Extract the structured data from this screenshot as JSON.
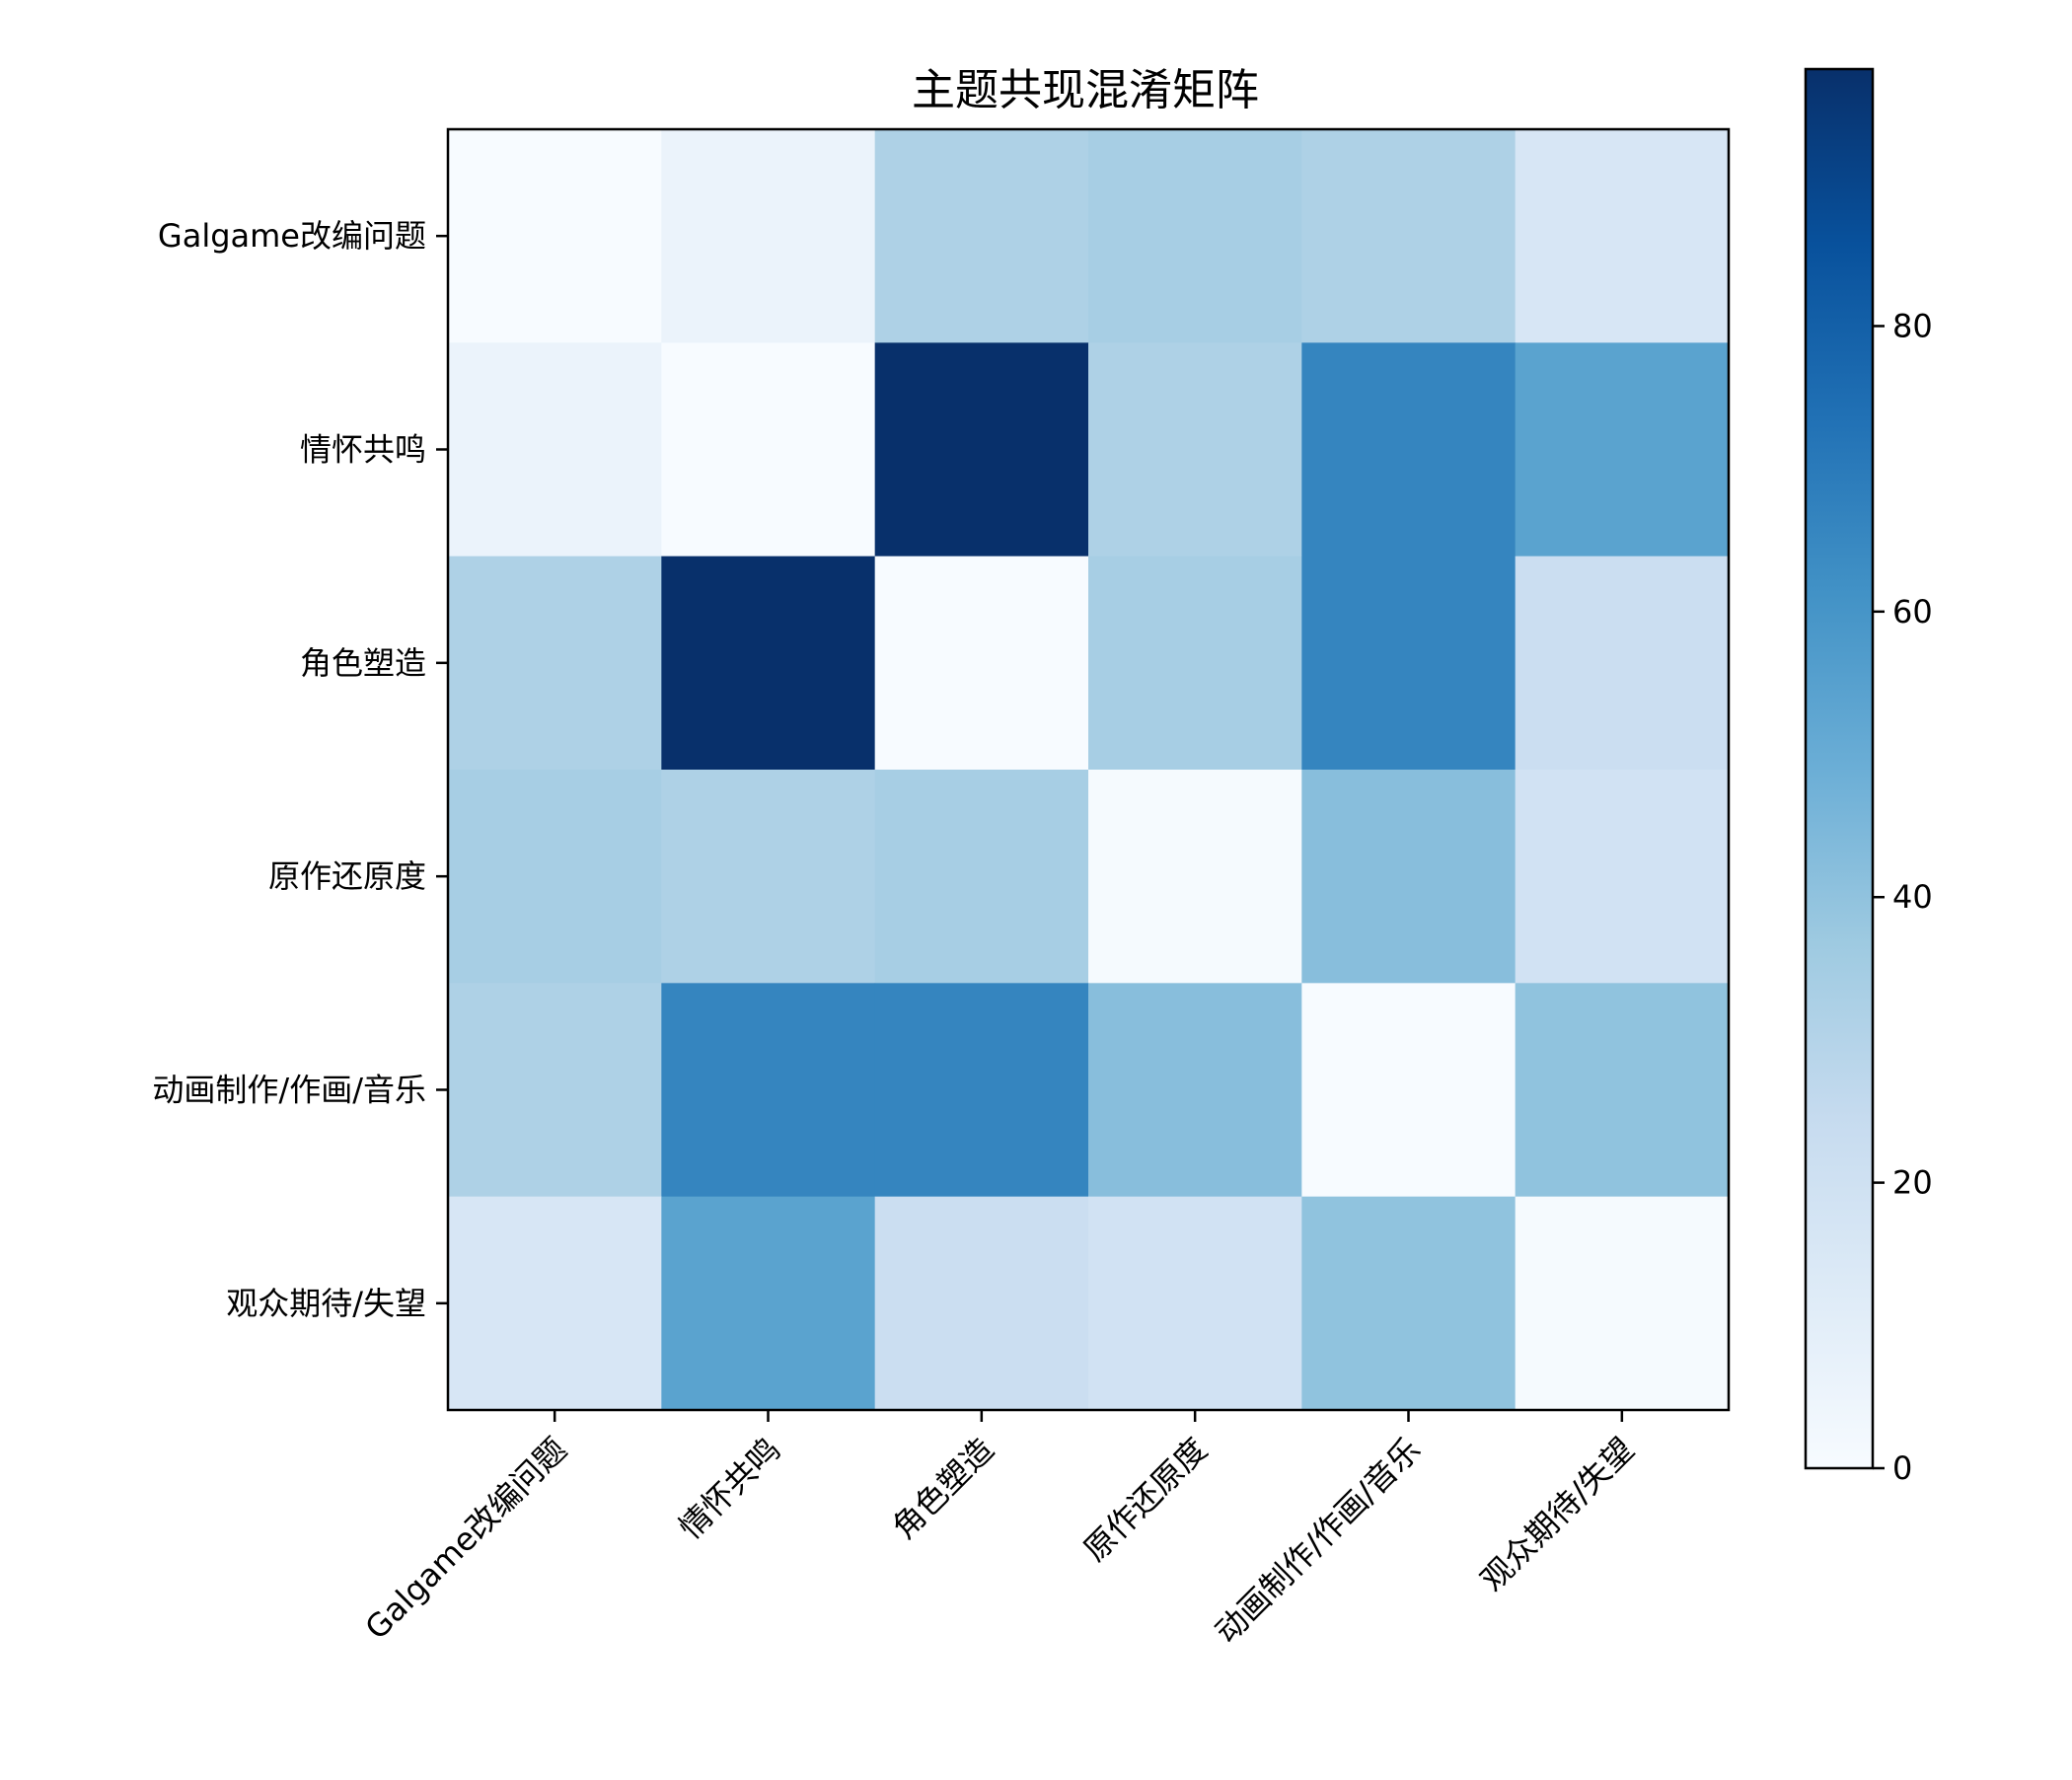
{
  "chart_data": {
    "type": "heatmap",
    "title": "主题共现混淆矩阵",
    "xlabel": "",
    "ylabel": "",
    "row_labels": [
      "Galgame改编问题",
      "情怀共鸣",
      "角色塑造",
      "原作还原度",
      "动画制作/作画/音乐",
      "观众期待/失望"
    ],
    "col_labels": [
      "Galgame改编问题",
      "情怀共鸣",
      "角色塑造",
      "原作还原度",
      "动画制作/作画/音乐",
      "观众期待/失望"
    ],
    "values": [
      [
        0,
        6,
        32,
        34,
        32,
        16
      ],
      [
        6,
        0,
        98,
        32,
        66,
        54
      ],
      [
        32,
        98,
        0,
        34,
        66,
        22
      ],
      [
        34,
        32,
        34,
        1,
        42,
        19
      ],
      [
        32,
        66,
        66,
        42,
        0,
        40
      ],
      [
        16,
        54,
        22,
        19,
        40,
        1
      ]
    ],
    "colormap": "Blues",
    "vmin": 0,
    "vmax": 98,
    "colorbar_ticks": [
      0,
      20,
      40,
      60,
      80
    ],
    "grid": false,
    "legend": "colorbar-right"
  }
}
